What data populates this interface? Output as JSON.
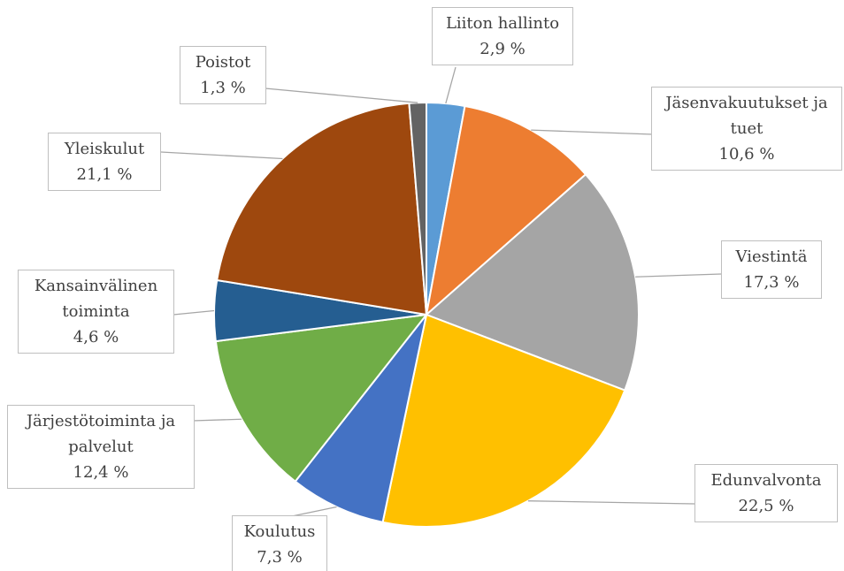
{
  "chart_data": {
    "type": "pie",
    "categories": [
      "Liiton hallinto",
      "Jäsenvakuutukset ja tuet",
      "Viestintä",
      "Edunvalvonta",
      "Koulutus",
      "Järjestötoiminta ja palvelut",
      "Kansainvälinen toiminta",
      "Yleiskulut",
      "Poistot"
    ],
    "values": [
      2.9,
      10.6,
      17.3,
      22.5,
      7.3,
      12.4,
      4.6,
      21.1,
      1.3
    ],
    "value_labels": [
      "2,9 %",
      "10,6 %",
      "17,3 %",
      "22,5 %",
      "7,3 %",
      "12,4 %",
      "4,6 %",
      "21,1 %",
      "1,3 %"
    ],
    "colors": [
      "#5b9bd5",
      "#ed7d31",
      "#a5a5a5",
      "#ffc000",
      "#4472c4",
      "#70ad47",
      "#255e91",
      "#9e480e",
      "#636363"
    ]
  }
}
